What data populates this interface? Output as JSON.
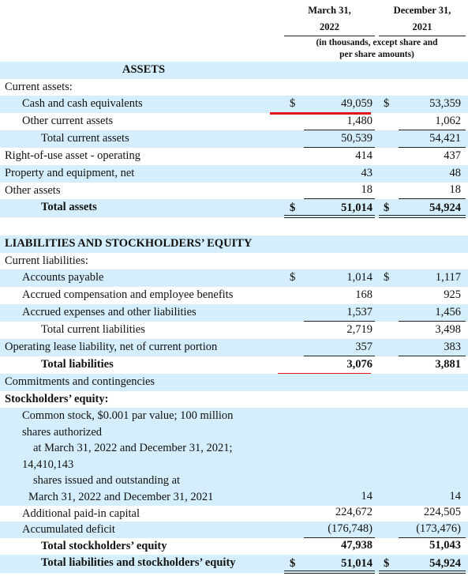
{
  "header": {
    "columns": [
      {
        "line1": "March 31,",
        "line2": "2022"
      },
      {
        "line1": "December 31,",
        "line2": "2021"
      }
    ],
    "note": "(in thousands, except share and per share amounts)"
  },
  "table": {
    "rows": [
      {
        "label": "ASSETS"
      },
      {
        "label": "Current assets:"
      },
      {
        "label": "Cash and cash equivalents",
        "currency": "$",
        "values": [
          "49,059",
          "53,359"
        ]
      },
      {
        "label": "Other current assets",
        "values": [
          "1,480",
          "1,062"
        ]
      },
      {
        "label": "Total current assets",
        "values": [
          "50,539",
          "54,421"
        ]
      },
      {
        "label": "Right-of-use asset - operating",
        "values": [
          "414",
          "437"
        ]
      },
      {
        "label": "Property and equipment, net",
        "values": [
          "43",
          "48"
        ]
      },
      {
        "label": "Other assets",
        "values": [
          "18",
          "18"
        ]
      },
      {
        "label": "Total assets",
        "currency": "$",
        "values": [
          "51,014",
          "54,924"
        ]
      },
      {
        "label": "LIABILITIES AND STOCKHOLDERS’ EQUITY"
      },
      {
        "label": "Current liabilities:"
      },
      {
        "label": "Accounts payable",
        "currency": "$",
        "values": [
          "1,014",
          "1,117"
        ]
      },
      {
        "label": "Accrued compensation and employee benefits",
        "values": [
          "168",
          "925"
        ]
      },
      {
        "label": "Accrued expenses and other liabilities",
        "values": [
          "1,537",
          "1,456"
        ]
      },
      {
        "label": "Total current liabilities",
        "values": [
          "2,719",
          "3,498"
        ]
      },
      {
        "label": "Operating lease liability, net of current portion",
        "values": [
          "357",
          "383"
        ]
      },
      {
        "label": "Total liabilities",
        "values": [
          "3,076",
          "3,881"
        ]
      },
      {
        "label": "Commitments and contingencies"
      },
      {
        "label": "Stockholders’ equity:"
      },
      {
        "label": [
          "Common stock, $0.001 par value; 100 million",
          "shares authorized",
          "at March 31, 2022 and December 31, 2021;",
          "14,410,143",
          "shares issued and outstanding at",
          "March 31, 2022 and December 31, 2021"
        ],
        "values": [
          "14",
          "14"
        ]
      },
      {
        "label": "Additional paid-in capital",
        "values": [
          "224,672",
          "224,505"
        ]
      },
      {
        "label": "Accumulated deficit",
        "values": [
          "(176,748)",
          "(173,476)"
        ]
      },
      {
        "label": "Total stockholders’ equity",
        "values": [
          "47,938",
          "51,043"
        ]
      },
      {
        "label": "Total liabilities and stockholders’ equity",
        "currency": "$",
        "values": [
          "51,014",
          "54,924"
        ]
      }
    ]
  }
}
